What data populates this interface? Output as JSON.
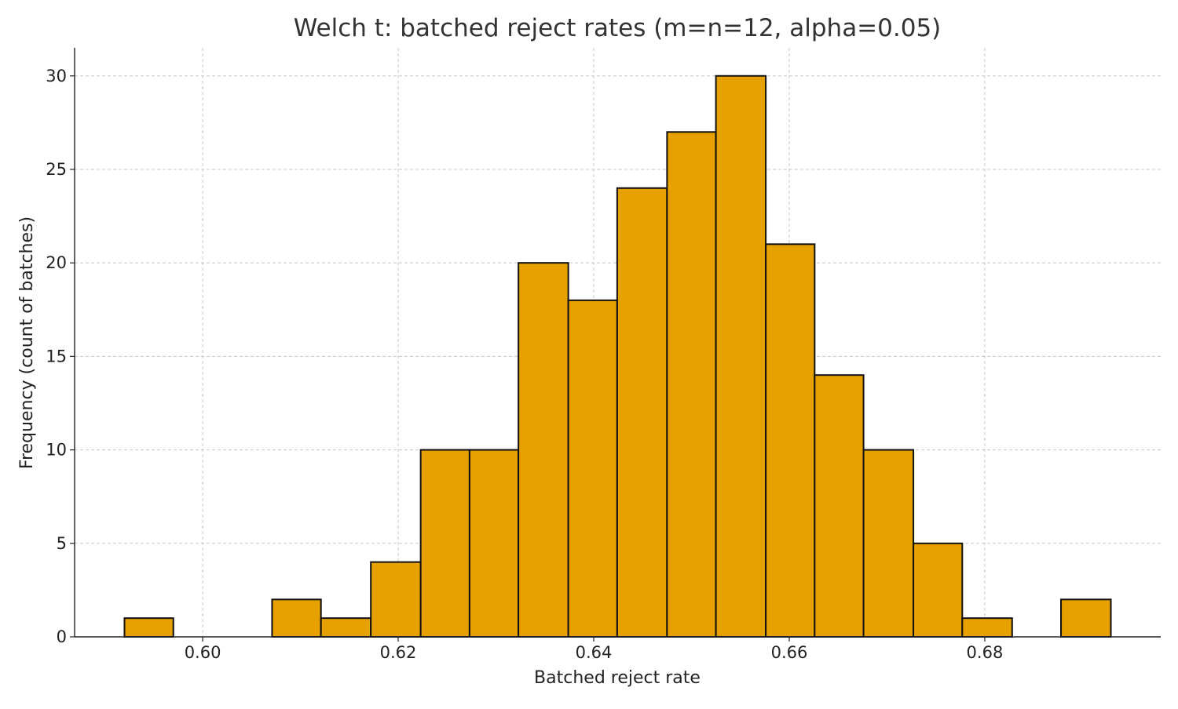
{
  "chart_data": {
    "type": "bar",
    "title": "Welch t: batched reject rates (m=n=12, alpha=0.05)",
    "xlabel": "Batched reject rate",
    "ylabel": "Frequency (count of batches)",
    "bins": [
      {
        "x0": 0.592,
        "x1": 0.597,
        "count": 1
      },
      {
        "x0": 0.597,
        "x1": 0.602,
        "count": 0
      },
      {
        "x0": 0.602,
        "x1": 0.6071,
        "count": 0
      },
      {
        "x0": 0.6071,
        "x1": 0.6121,
        "count": 2
      },
      {
        "x0": 0.6121,
        "x1": 0.6172,
        "count": 1
      },
      {
        "x0": 0.6172,
        "x1": 0.6223,
        "count": 4
      },
      {
        "x0": 0.6223,
        "x1": 0.6273,
        "count": 10
      },
      {
        "x0": 0.6273,
        "x1": 0.6323,
        "count": 10
      },
      {
        "x0": 0.6323,
        "x1": 0.6374,
        "count": 20
      },
      {
        "x0": 0.6374,
        "x1": 0.6424,
        "count": 18
      },
      {
        "x0": 0.6424,
        "x1": 0.6475,
        "count": 24
      },
      {
        "x0": 0.6475,
        "x1": 0.6525,
        "count": 27
      },
      {
        "x0": 0.6525,
        "x1": 0.6576,
        "count": 30
      },
      {
        "x0": 0.6576,
        "x1": 0.6626,
        "count": 21
      },
      {
        "x0": 0.6626,
        "x1": 0.6676,
        "count": 14
      },
      {
        "x0": 0.6676,
        "x1": 0.6727,
        "count": 10
      },
      {
        "x0": 0.6727,
        "x1": 0.6777,
        "count": 5
      },
      {
        "x0": 0.6777,
        "x1": 0.6828,
        "count": 1
      },
      {
        "x0": 0.6828,
        "x1": 0.6878,
        "count": 0
      },
      {
        "x0": 0.6878,
        "x1": 0.6929,
        "count": 2
      }
    ],
    "xlim": [
      0.5869,
      0.698
    ],
    "ylim": [
      0,
      31.5
    ],
    "xticks": [
      {
        "value": 0.6,
        "label": "0.60"
      },
      {
        "value": 0.62,
        "label": "0.62"
      },
      {
        "value": 0.64,
        "label": "0.64"
      },
      {
        "value": 0.66,
        "label": "0.66"
      },
      {
        "value": 0.68,
        "label": "0.68"
      }
    ],
    "yticks": [
      {
        "value": 0,
        "label": "0"
      },
      {
        "value": 5,
        "label": "5"
      },
      {
        "value": 10,
        "label": "10"
      },
      {
        "value": 15,
        "label": "15"
      },
      {
        "value": 20,
        "label": "20"
      },
      {
        "value": 25,
        "label": "25"
      },
      {
        "value": 30,
        "label": "30"
      }
    ],
    "grid": true,
    "bar_color": "#E6A000",
    "bar_edge_color": "#111111"
  }
}
